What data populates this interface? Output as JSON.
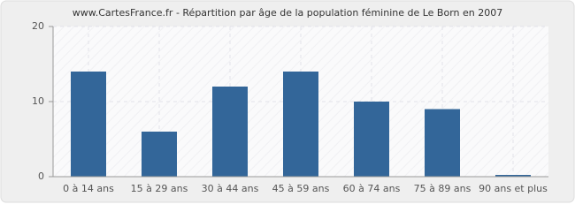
{
  "chart_data": {
    "type": "bar",
    "title": "www.CartesFrance.fr - Répartition par âge de la population féminine de Le Born en 2007",
    "categories": [
      "0 à 14 ans",
      "15 à 29 ans",
      "30 à 44 ans",
      "45 à 59 ans",
      "60 à 74 ans",
      "75 à 89 ans",
      "90 ans et plus"
    ],
    "values": [
      14,
      6,
      12,
      14,
      10,
      9,
      0
    ],
    "color": "#336699",
    "ylim": [
      0,
      20
    ],
    "yticks": [
      0,
      10,
      20
    ],
    "grid": true
  }
}
